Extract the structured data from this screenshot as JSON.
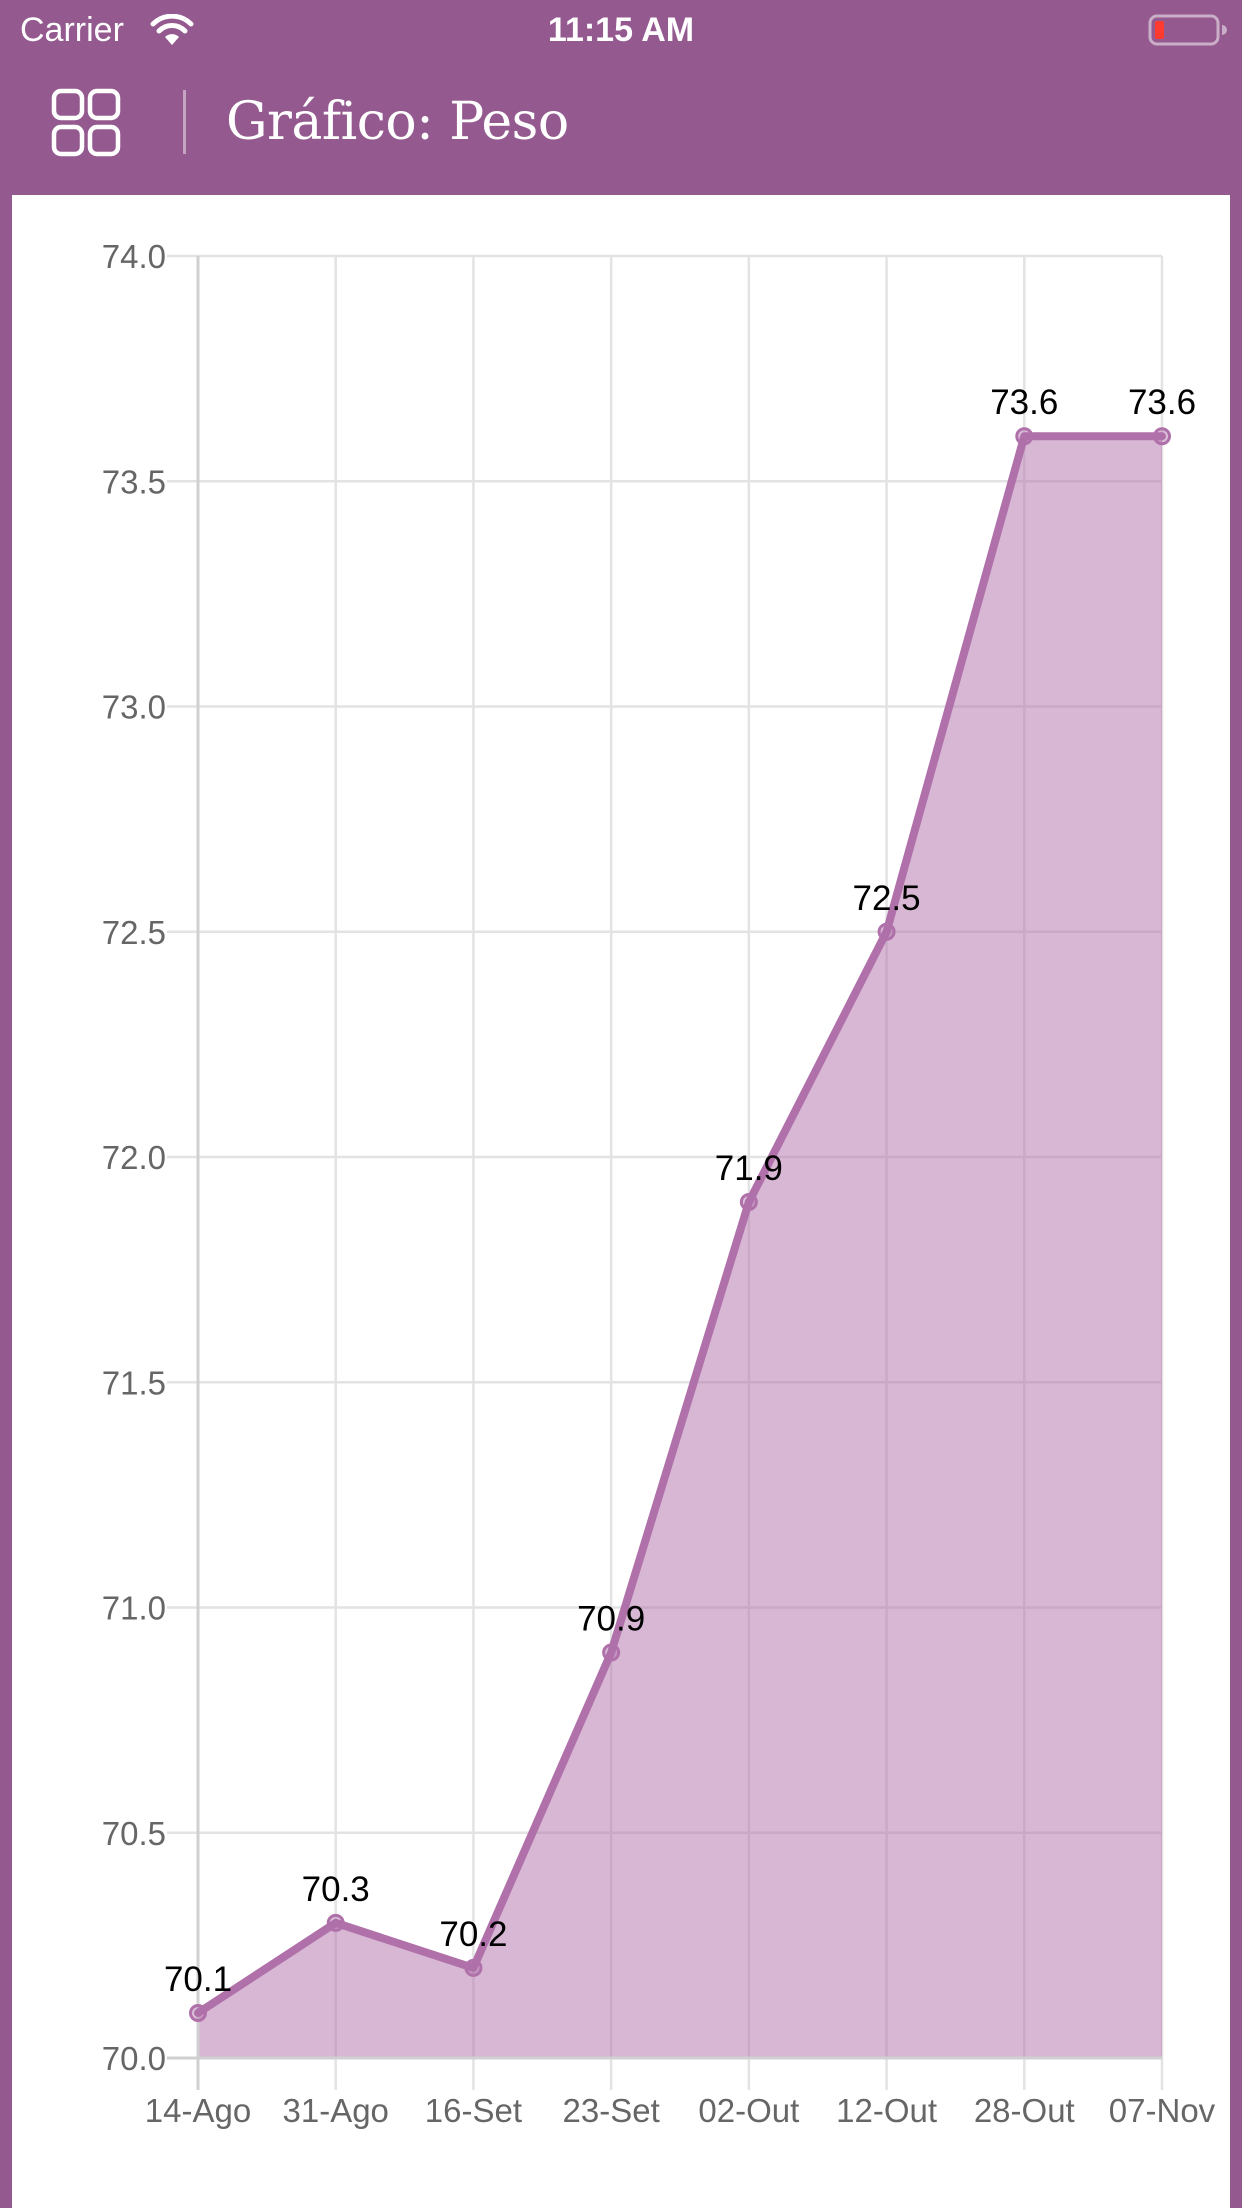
{
  "status_bar": {
    "carrier": "Carrier",
    "time": "11:15 AM",
    "icons": [
      "wifi-icon",
      "battery-low-icon"
    ]
  },
  "nav": {
    "menu_icon": "grid-icon",
    "title": "Gráfico: Peso"
  },
  "colors": {
    "brand": "#945a8f",
    "line": "#b070aa",
    "fill": "#d6b4d2",
    "grid": "#e3e3e3",
    "axis_text": "#666666",
    "battery_low": "#ff3b30"
  },
  "chart_data": {
    "type": "area",
    "title": "Gráfico: Peso",
    "xlabel": "",
    "ylabel": "",
    "categories": [
      "14-Ago",
      "31-Ago",
      "16-Set",
      "23-Set",
      "02-Out",
      "12-Out",
      "28-Out",
      "07-Nov"
    ],
    "series": [
      {
        "name": "Peso",
        "values": [
          70.1,
          70.3,
          70.2,
          70.9,
          71.9,
          72.5,
          73.6,
          73.6
        ]
      }
    ],
    "data_labels": [
      "70.1",
      "70.3",
      "70.2",
      "70.9",
      "71.9",
      "72.5",
      "73.6",
      "73.6"
    ],
    "yticks": [
      "74.0",
      "73.5",
      "73.0",
      "72.5",
      "72.0",
      "71.5",
      "71.0",
      "70.5",
      "70.0"
    ],
    "ylim": [
      70.0,
      74.0
    ],
    "grid": true,
    "legend": false
  }
}
